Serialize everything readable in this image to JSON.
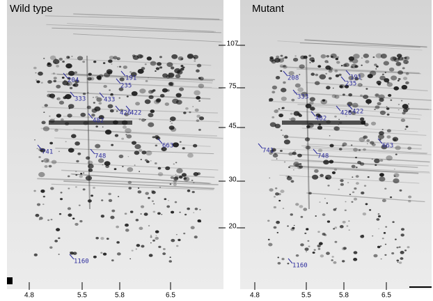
{
  "panels": [
    {
      "title": "Wild type",
      "spots": [
        "204",
        "191",
        "235",
        "333",
        "433",
        "426",
        "422",
        "482",
        "663",
        "741",
        "748",
        "1160"
      ]
    },
    {
      "title": "Mutant",
      "spots": [
        "208",
        "191",
        "235",
        "333",
        "426",
        "422",
        "482",
        "663",
        "741",
        "748",
        "1160"
      ]
    }
  ],
  "mw_markers": [
    "107",
    "75",
    "45",
    "30",
    "20"
  ],
  "pi_labels": [
    [
      "4.8",
      "5.5",
      "5.8",
      "6.5"
    ],
    [
      "4.8",
      "5.5",
      "5.8",
      "6.5"
    ]
  ]
}
